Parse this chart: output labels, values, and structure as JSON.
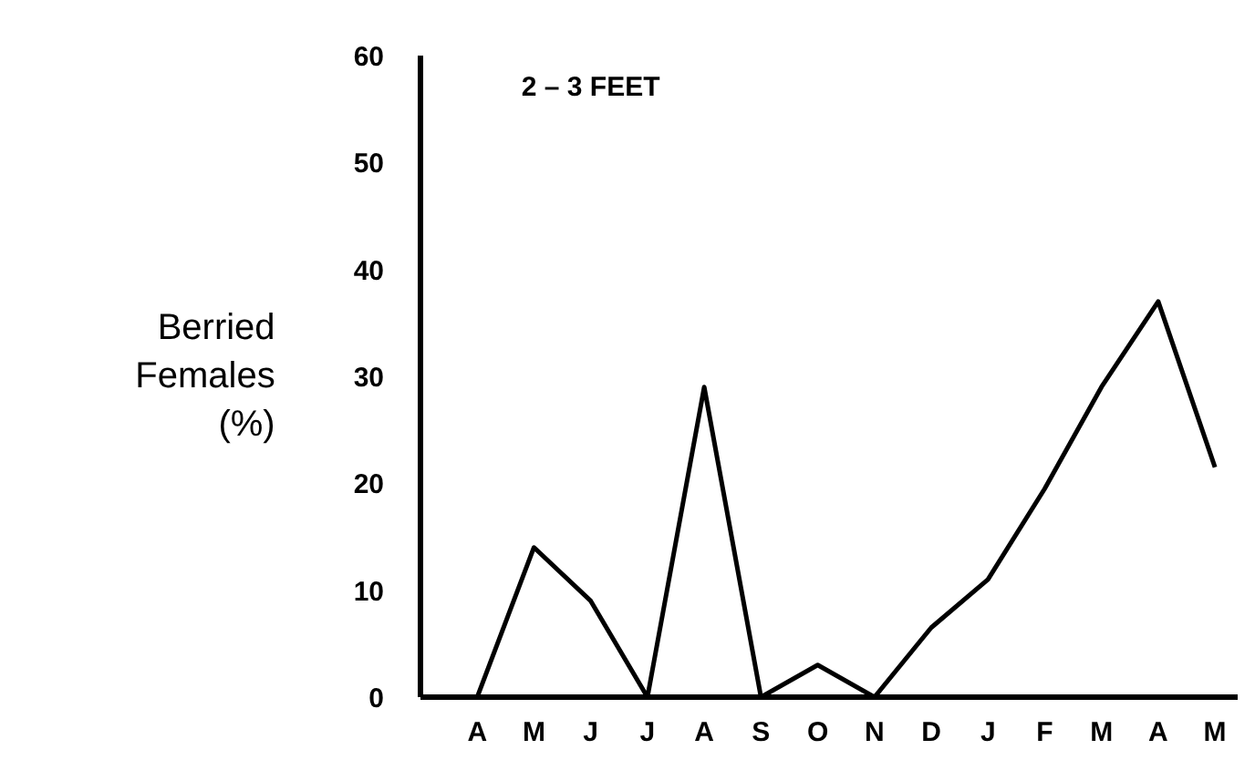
{
  "chart_data": {
    "type": "line",
    "title": "2 – 3 FEET",
    "ylabel": "Berried Females (%)",
    "categories": [
      "A",
      "M",
      "J",
      "J",
      "A",
      "S",
      "O",
      "N",
      "D",
      "J",
      "F",
      "M",
      "A",
      "M"
    ],
    "series": [
      {
        "color": "#000000",
        "values": [
          0,
          14,
          9,
          0,
          29,
          0,
          3,
          0,
          6.5,
          11,
          19.5,
          29,
          37,
          21.5
        ]
      }
    ],
    "ylim": [
      0,
      60
    ],
    "yticks": [
      0,
      10,
      20,
      30,
      40,
      50,
      60
    ],
    "grid": false,
    "marker": "none",
    "line_style": "solid"
  }
}
